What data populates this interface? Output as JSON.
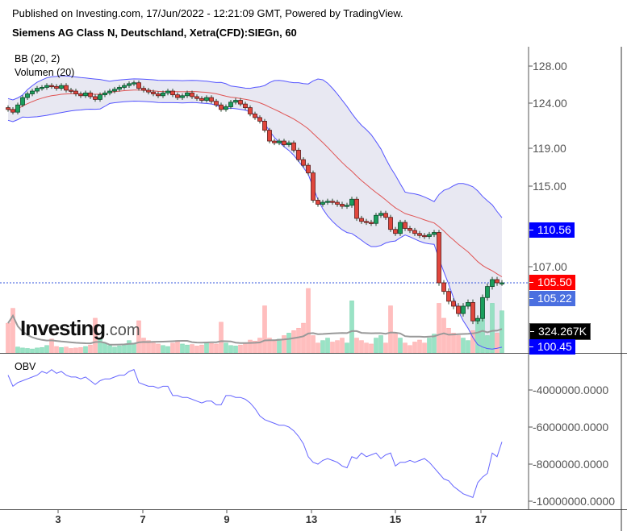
{
  "header": {
    "published": "Published on Investing.com, 17/Jun/2022 - 12:21:09 GMT, Powered by TradingView.",
    "title": "Siemens AG Class N, Deutschland, Xetra(CFD):SIEGn, 60"
  },
  "indicators": {
    "bb": "BB (20, 2)",
    "volume": "Volumen (20)",
    "obv": "OBV"
  },
  "logo": {
    "main": "Investing",
    "suffix": ".com"
  },
  "price_axis": {
    "ticks": [
      "128.00",
      "124.00",
      "119.00",
      "115.00",
      "107.00"
    ]
  },
  "price_labels": {
    "bb_upper": {
      "text": "110.56",
      "color": "#0000ff"
    },
    "last": {
      "text": "105.50",
      "color": "#ff0000"
    },
    "bb_basis": {
      "text": "105.22",
      "color": "#4a6fe0"
    },
    "volume_ma": {
      "text": "324.267K",
      "color": "#000000"
    },
    "bb_lower": {
      "text": "100.45",
      "color": "#0000ff"
    }
  },
  "obv_axis": {
    "ticks": [
      "-4000000.0000",
      "-6000000.0000",
      "-8000000.0000",
      "-10000000.0000"
    ]
  },
  "x_axis": {
    "labels": [
      "3",
      "7",
      "9",
      "13",
      "15",
      "17"
    ]
  },
  "colors": {
    "up": "#1a9e5c",
    "down": "#e0463c",
    "bb_band": "#5555ff",
    "bb_basis": "#e05555",
    "bb_fill": "#e4e4f0",
    "obv": "#6666ff",
    "vol_up": "#8fe0bf",
    "vol_down": "#ffb8b8",
    "vol_ma": "#999999"
  },
  "chart_data": {
    "type": "candlestick",
    "interval": "60",
    "close": [
      123.3,
      123.0,
      123.8,
      124.6,
      125.0,
      125.3,
      125.6,
      125.7,
      125.9,
      125.8,
      125.6,
      125.9,
      125.4,
      125.3,
      125.0,
      124.8,
      125.1,
      124.7,
      124.4,
      124.9,
      125.1,
      125.3,
      125.5,
      125.7,
      125.9,
      126.1,
      126.2,
      125.6,
      125.4,
      125.2,
      125.0,
      124.8,
      125.1,
      125.3,
      124.9,
      124.6,
      124.8,
      125.1,
      124.7,
      124.5,
      124.3,
      124.6,
      124.2,
      123.8,
      123.3,
      123.6,
      124.1,
      124.3,
      123.9,
      123.5,
      122.8,
      122.4,
      122.0,
      121.0,
      119.8,
      119.6,
      119.8,
      119.4,
      119.6,
      118.8,
      117.8,
      117.2,
      116.4,
      113.6,
      113.2,
      113.4,
      113.5,
      113.4,
      113.2,
      113.0,
      113.1,
      113.7,
      111.8,
      111.5,
      111.4,
      111.3,
      112.1,
      112.3,
      111.9,
      110.7,
      110.3,
      111.4,
      110.8,
      110.6,
      110.3,
      110.1,
      110.0,
      110.2,
      110.4,
      105.5,
      104.8,
      104.0,
      103.6,
      103.0,
      103.6,
      103.9,
      102.4,
      102.6,
      104.3,
      105.2,
      105.8,
      105.5,
      105.5
    ],
    "volume_k": [
      600,
      900,
      120,
      100,
      90,
      80,
      100,
      110,
      150,
      280,
      130,
      110,
      120,
      90,
      100,
      110,
      130,
      160,
      700,
      300,
      200,
      150,
      120,
      140,
      180,
      250,
      200,
      650,
      300,
      250,
      200,
      180,
      150,
      130,
      200,
      250,
      180,
      160,
      170,
      140,
      160,
      200,
      190,
      180,
      620,
      200,
      150,
      140,
      160,
      200,
      260,
      240,
      300,
      950,
      300,
      250,
      280,
      350,
      400,
      450,
      500,
      600,
      1300,
      350,
      200,
      250,
      300,
      220,
      250,
      300,
      200,
      1050,
      300,
      250,
      200,
      180,
      300,
      350,
      200,
      950,
      400,
      300,
      200,
      150,
      220,
      260,
      200,
      300,
      380,
      1000,
      700,
      500,
      400,
      350,
      300,
      250,
      450,
      700,
      900,
      350,
      1000,
      400,
      850
    ],
    "obv": [
      -3200000,
      -3800000,
      -3600000,
      -3500000,
      -3400000,
      -3300000,
      -3200000,
      -3000000,
      -3100000,
      -2900000,
      -3100000,
      -3000000,
      -3200000,
      -3300000,
      -3300000,
      -3400000,
      -3300000,
      -3500000,
      -3700000,
      -3500000,
      -3400000,
      -3400000,
      -3300000,
      -3200000,
      -3200000,
      -3000000,
      -2900000,
      -3600000,
      -3700000,
      -3800000,
      -3800000,
      -3900000,
      -3800000,
      -3800000,
      -4300000,
      -4300000,
      -4400000,
      -4400000,
      -4500000,
      -4600000,
      -4700000,
      -4600000,
      -4600000,
      -4800000,
      -4800000,
      -4300000,
      -4300000,
      -4400000,
      -4400000,
      -4500000,
      -4700000,
      -5000000,
      -5400000,
      -5600000,
      -5700000,
      -5800000,
      -5900000,
      -5900000,
      -6000000,
      -6200000,
      -6500000,
      -6900000,
      -7600000,
      -7900000,
      -8000000,
      -7800000,
      -7700000,
      -7800000,
      -7900000,
      -8100000,
      -8200000,
      -7600000,
      -7700000,
      -7400000,
      -7600000,
      -7500000,
      -7400000,
      -7700000,
      -7500000,
      -7400000,
      -8100000,
      -7900000,
      -7900000,
      -7800000,
      -7900000,
      -7800000,
      -7700000,
      -7900000,
      -8200000,
      -8500000,
      -8800000,
      -8900000,
      -9200000,
      -9400000,
      -9600000,
      -9700000,
      -9800000,
      -9000000,
      -8700000,
      -8500000,
      -7400000,
      -7600000,
      -6800000
    ],
    "bb_period": 20,
    "bb_mult": 2,
    "volume_ma_period": 20,
    "last_price": 105.5,
    "x_labels": [
      "3",
      "7",
      "9",
      "13",
      "15",
      "17"
    ]
  }
}
